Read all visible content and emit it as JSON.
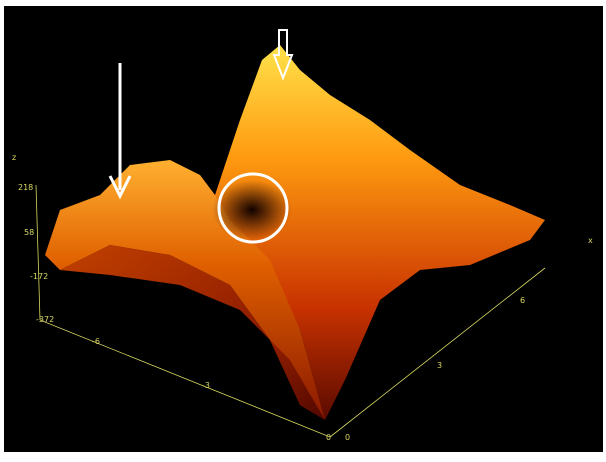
{
  "axes": {
    "z": {
      "label": "z",
      "ticks": [
        "218",
        "58",
        "-172",
        "-372"
      ]
    },
    "front": {
      "ticks": [
        "-6",
        "-3",
        "0"
      ]
    },
    "right": {
      "label": "x",
      "ticks": [
        "0",
        "3",
        "6"
      ]
    }
  }
}
